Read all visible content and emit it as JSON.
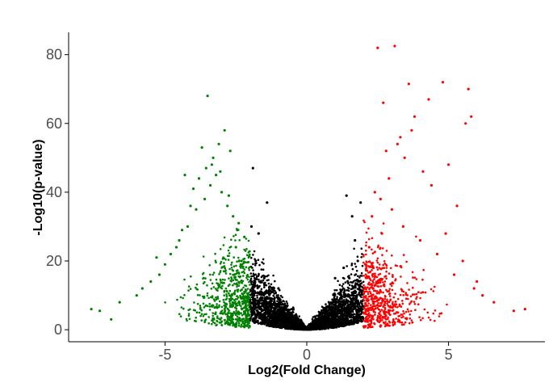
{
  "chart_data": {
    "type": "scatter",
    "title": "",
    "xlabel": "Log2(Fold Change)",
    "ylabel": "-Log10(p-value)",
    "xlim": [
      -8.4,
      8.4
    ],
    "ylim": [
      -3.5,
      86.5
    ],
    "xticks": [
      -5,
      0,
      5
    ],
    "yticks": [
      0,
      20,
      40,
      60,
      80
    ],
    "x_tick_labels": [
      "-5",
      "0",
      "5"
    ],
    "y_tick_labels": [
      "0",
      "20",
      "40",
      "60",
      "80"
    ],
    "grid": false,
    "legend": "none",
    "thresholds": {
      "log2fc_down": -2,
      "log2fc_up": 2
    },
    "colors": {
      "down": "#008000",
      "not_significant": "#000000",
      "up": "#ff0000"
    },
    "series": [
      {
        "class": "down",
        "color": "#008000",
        "x": [
          -3.5,
          -2.9,
          -3.1,
          -3.7,
          -2.7,
          -3.3,
          -4.3,
          -7.6,
          -7.3,
          -6.6,
          -5.8,
          -5.2,
          -4.8,
          -4.5,
          -4.2,
          -3.9,
          -3.6,
          -3.4,
          -3.2,
          -3.0,
          -2.8,
          -2.6,
          -2.4,
          -2.2,
          -3.8,
          -4.1,
          -2.5,
          -3.35,
          -5.0,
          -4.4,
          -6.0,
          -5.5,
          -4.0,
          -2.3,
          -3.05,
          -2.75,
          -4.6,
          -3.55,
          -2.45,
          -6.9,
          -5.3
        ],
        "y": [
          68,
          58,
          54,
          53,
          52,
          50,
          45,
          6,
          5.5,
          8,
          12,
          16,
          22,
          26,
          30,
          35,
          38,
          42,
          45,
          40,
          36,
          33,
          31,
          27,
          44,
          36,
          24,
          48,
          19,
          29,
          10,
          14,
          41,
          20,
          46,
          39,
          24,
          47,
          29,
          3,
          21
        ]
      },
      {
        "class": "not_significant",
        "color": "#000000",
        "x": [
          -1.8,
          -1.5,
          -1.2,
          -0.9,
          -0.6,
          -0.3,
          0.0,
          0.3,
          0.6,
          0.9,
          1.2,
          1.5,
          1.8,
          -1.9,
          -1.4,
          -1.0,
          1.0,
          1.4,
          1.9,
          -1.7,
          1.7,
          -1.95,
          1.3,
          1.6
        ],
        "y": [
          20,
          15,
          11,
          8,
          5,
          2,
          0.2,
          2,
          5,
          8,
          11,
          15,
          20,
          47,
          37,
          12,
          15,
          39,
          37,
          28,
          26,
          30,
          18,
          33
        ]
      },
      {
        "class": "up",
        "color": "#ff0000",
        "x": [
          2.5,
          3.1,
          5.7,
          3.6,
          2.7,
          4.8,
          4.3,
          3.8,
          5.8,
          5.6,
          7.7,
          7.3,
          6.6,
          5.9,
          5.2,
          4.6,
          4.0,
          3.4,
          3.0,
          2.6,
          2.3,
          2.2,
          2.8,
          3.3,
          4.1,
          4.4,
          5.0,
          5.3,
          3.7,
          3.2,
          2.9,
          2.4,
          6.2,
          5.5,
          6.0,
          2.65,
          3.45,
          4.9,
          2.35
        ],
        "y": [
          82,
          82.5,
          70,
          71.5,
          66,
          72,
          67,
          62,
          62,
          60,
          6,
          5.5,
          8,
          12,
          16,
          22,
          26,
          30,
          35,
          38,
          33,
          24,
          52,
          56,
          46,
          42,
          48,
          36,
          58,
          54,
          44,
          40,
          10,
          20,
          14,
          28,
          50,
          28,
          18
        ]
      }
    ]
  }
}
